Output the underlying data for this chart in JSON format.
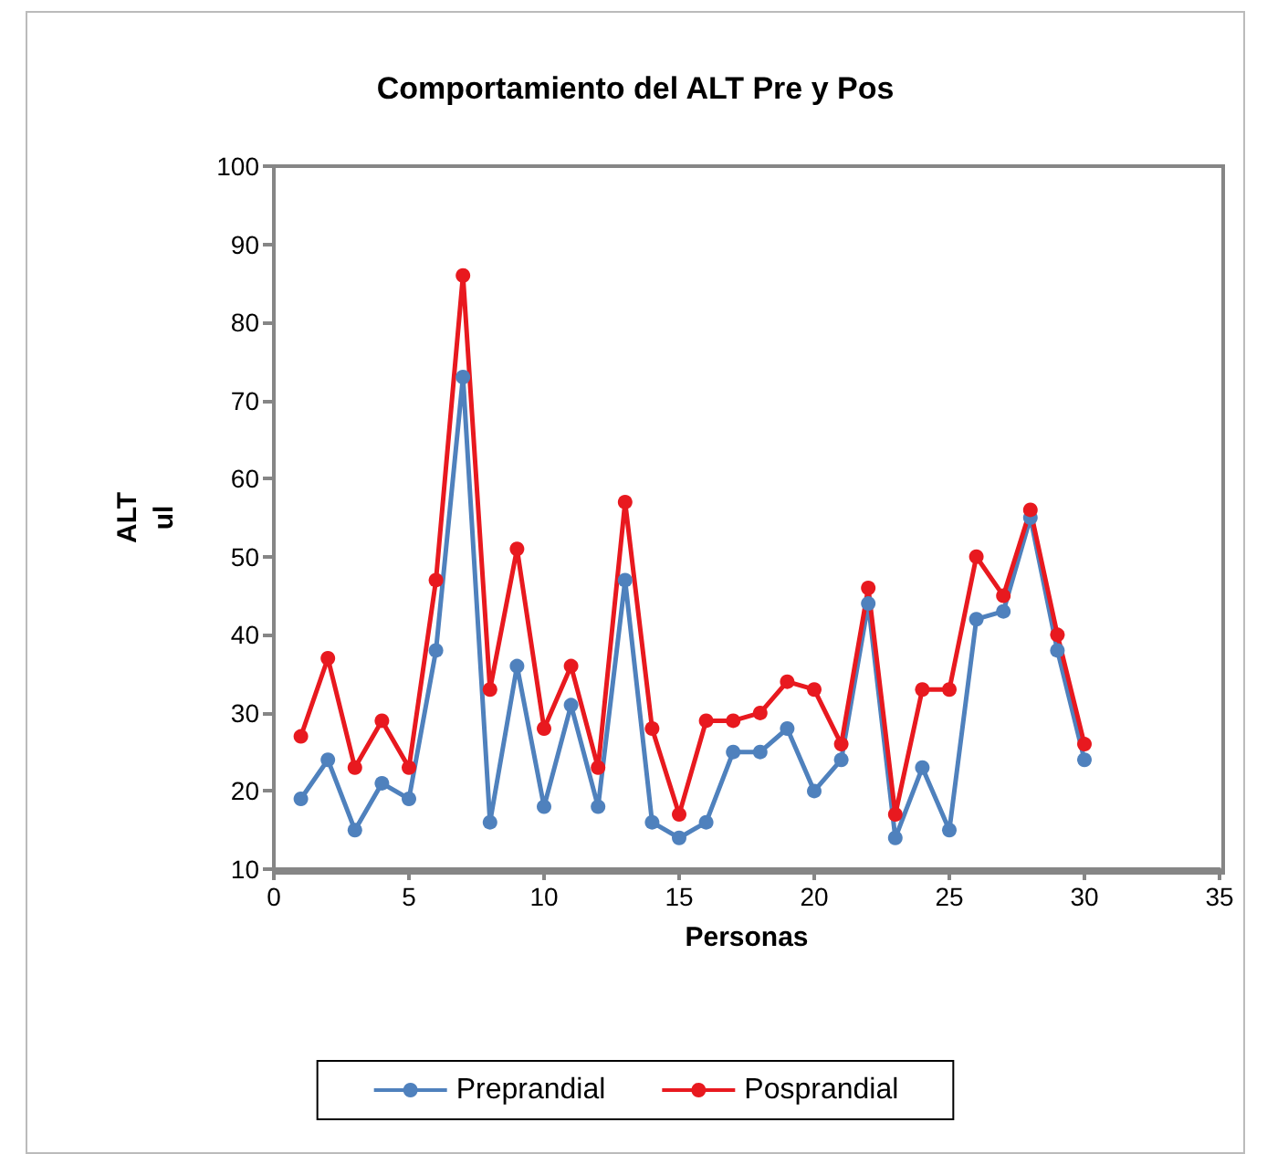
{
  "chart_data": {
    "type": "line",
    "title": "Comportamiento del ALT Pre y Pos",
    "xlabel": "Personas",
    "ylabel": "ALT\nul",
    "x": [
      1,
      2,
      3,
      4,
      5,
      6,
      7,
      8,
      9,
      10,
      11,
      12,
      13,
      14,
      15,
      16,
      17,
      18,
      19,
      20,
      21,
      22,
      23,
      24,
      25,
      26,
      27,
      28,
      29,
      30
    ],
    "series": [
      {
        "name": "Preprandial",
        "color": "#4f81bd",
        "values": [
          19,
          24,
          15,
          21,
          19,
          38,
          73,
          16,
          36,
          18,
          31,
          18,
          47,
          16,
          14,
          16,
          25,
          25,
          28,
          20,
          24,
          44,
          14,
          23,
          15,
          42,
          43,
          55,
          38,
          24
        ]
      },
      {
        "name": "Posprandial",
        "color": "#e8191f",
        "values": [
          27,
          37,
          23,
          29,
          23,
          47,
          86,
          33,
          51,
          28,
          36,
          23,
          57,
          28,
          17,
          29,
          29,
          30,
          34,
          33,
          26,
          46,
          17,
          33,
          33,
          50,
          45,
          56,
          40,
          26
        ]
      }
    ],
    "xlim": [
      0,
      35
    ],
    "xticks": [
      0,
      5,
      10,
      15,
      20,
      25,
      30,
      35
    ],
    "ylim": [
      10,
      100
    ],
    "yticks": [
      10,
      20,
      30,
      40,
      50,
      60,
      70,
      80,
      90,
      100
    ],
    "grid": false,
    "legend": "bottom",
    "marker": "circle",
    "line_style": "solid"
  }
}
